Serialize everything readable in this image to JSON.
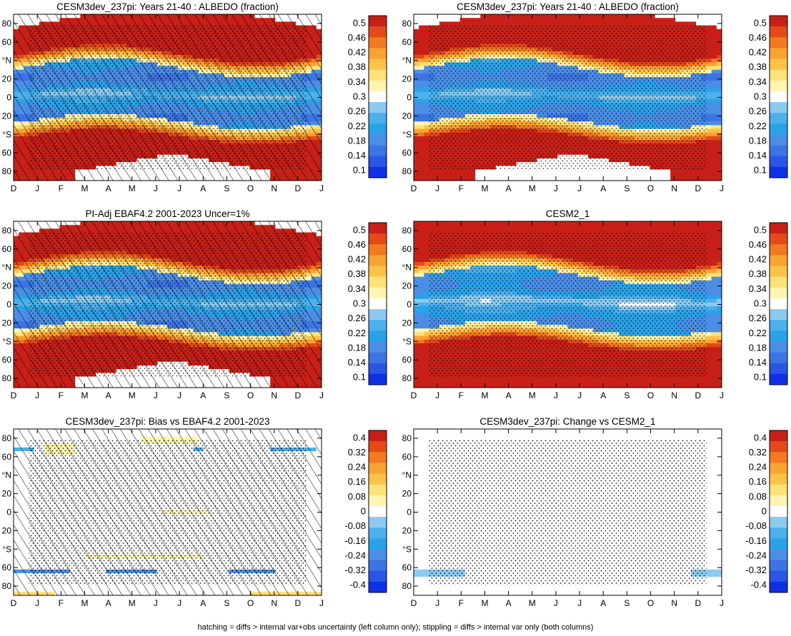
{
  "months": [
    "D",
    "J",
    "F",
    "M",
    "A",
    "M",
    "J",
    "J",
    "A",
    "S",
    "O",
    "N",
    "D",
    "J"
  ],
  "lat_labels": [
    "80",
    "60",
    "°N",
    "20",
    "0",
    "20",
    "°S",
    "60",
    "80"
  ],
  "footnote": "hatching = diffs > internal var+obs uncertainty (left column only); stippling = diffs > internal var only (both columns)",
  "colorbars": {
    "albedo": {
      "colors": [
        "#1030e8",
        "#2a55e6",
        "#3d74e4",
        "#4a8ee6",
        "#2aa2e8",
        "#4cb0ec",
        "#8ccaf0",
        "#ffffff",
        "#fff5b0",
        "#fde27a",
        "#fcc248",
        "#faa232",
        "#f27a20",
        "#e34a18",
        "#c82018"
      ],
      "labels": [
        "0.5",
        "0.46",
        "0.42",
        "0.38",
        "0.34",
        "0.3",
        "0.26",
        "0.22",
        "0.18",
        "0.14",
        "0.1"
      ]
    },
    "diff": {
      "colors": [
        "#1030e8",
        "#2a55e6",
        "#3d74e4",
        "#4a8ee6",
        "#2aa2e8",
        "#4cb0ec",
        "#8ccaf0",
        "#ffffff",
        "#fff5b0",
        "#fde27a",
        "#fcc248",
        "#faa232",
        "#f27a20",
        "#e34a18",
        "#c82018"
      ],
      "labels": [
        "0.4",
        "0.32",
        "0.24",
        "0.16",
        "0.08",
        "0",
        "-0.08",
        "-0.16",
        "-0.24",
        "-0.32",
        "-0.4"
      ]
    }
  },
  "chart_data": [
    {
      "type": "heatmap",
      "title": "CESM3dev_237pi: Years 21-40 : ALBEDO (fraction)",
      "field": "albedo",
      "overlay": "hatch+stipple",
      "missing": "polar-night"
    },
    {
      "type": "heatmap",
      "title": "CESM3dev_237pi: Years 21-40 : ALBEDO (fraction)",
      "field": "albedo",
      "overlay": "stipple",
      "missing": "polar-night"
    },
    {
      "type": "heatmap",
      "title": "PI-Adj EBAF4.2 2001-2023 Uncer=1%",
      "field": "albedo",
      "overlay": "hatch+stipple",
      "missing": "polar-night"
    },
    {
      "type": "heatmap",
      "title": "CESM2_1",
      "field": "albedo",
      "overlay": "stipple",
      "missing": "none"
    },
    {
      "type": "heatmap",
      "title": "CESM3dev_237pi: Bias vs EBAF4.2 2001-2023",
      "field": "bias",
      "overlay": "hatch+stipple",
      "missing": "none"
    },
    {
      "type": "heatmap",
      "title": "CESM3dev_237pi: Change vs CESM2_1",
      "field": "change",
      "overlay": "stipple",
      "missing": "none"
    }
  ]
}
